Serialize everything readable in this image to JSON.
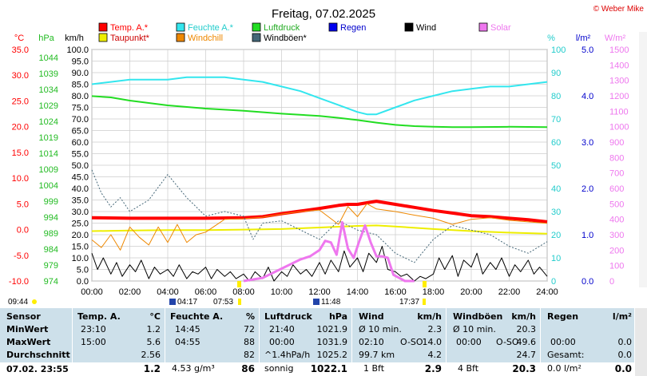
{
  "copyright": "© Weber Mike",
  "chart_data": {
    "type": "line",
    "title": "Freitag, 07.02.2025",
    "legend": [
      {
        "label": "Temp. A.*",
        "color": "#ff0000"
      },
      {
        "label": "Feuchte A.*",
        "color": "#33e6ee"
      },
      {
        "label": "Luftdruck",
        "color": "#22dd22"
      },
      {
        "label": "Regen",
        "color": "#0000ee"
      },
      {
        "label": "Wind",
        "color": "#000000"
      },
      {
        "label": "Solar",
        "color": "#ee77ee"
      },
      {
        "label": "Taupunkt*",
        "color": "#eeee00"
      },
      {
        "label": "Windchill",
        "color": "#ee8800"
      },
      {
        "label": "Windböen*",
        "color": "#446677"
      }
    ],
    "axis_units": {
      "temp": "°C",
      "pressure": "hPa",
      "wind": "km/h",
      "humidity": "%",
      "rain": "l/m²",
      "solar": "W/m²"
    },
    "axis_ticks": {
      "temp": [
        "35.0",
        "30.0",
        "25.0",
        "20.0",
        "15.0",
        "10.0",
        "5.0",
        "0.0",
        "-5.0",
        "-10.0"
      ],
      "pressure": [
        "1044",
        "1039",
        "1034",
        "1029",
        "1024",
        "1019",
        "1014",
        "1009",
        "1004",
        "999",
        "994",
        "989",
        "984",
        "979",
        "974"
      ],
      "wind": [
        "100.0",
        "95.0",
        "90.0",
        "85.0",
        "80.0",
        "75.0",
        "70.0",
        "65.0",
        "60.0",
        "55.0",
        "50.0",
        "45.0",
        "40.0",
        "35.0",
        "30.0",
        "25.0",
        "20.0",
        "15.0",
        "10.0",
        "5.0",
        "0.0"
      ],
      "humidity": [
        "100",
        "90",
        "80",
        "70",
        "60",
        "50",
        "40",
        "30",
        "20",
        "10",
        "0"
      ],
      "rain": [
        "5.0",
        "4.0",
        "3.0",
        "2.0",
        "1.0",
        "0.0"
      ],
      "solar": [
        "1500",
        "1400",
        "1300",
        "1200",
        "1100",
        "1000",
        "900",
        "800",
        "700",
        "600",
        "500",
        "400",
        "300",
        "200",
        "100",
        "0"
      ]
    },
    "x_ticks": [
      "00:00",
      "02:00",
      "04:00",
      "06:00",
      "08:00",
      "10:00",
      "12:00",
      "14:00",
      "16:00",
      "18:00",
      "20:00",
      "22:00",
      "24:00"
    ],
    "x_range": [
      0,
      24
    ],
    "series": [
      {
        "name": "Temp. A.*",
        "axis": "temp",
        "color": "#ff0000",
        "width": 4,
        "x": [
          0,
          2,
          4,
          6,
          8,
          9,
          10,
          11,
          12,
          13,
          13.5,
          14,
          14.5,
          15,
          16,
          17,
          18,
          19,
          20,
          21,
          22,
          23,
          24
        ],
        "y": [
          2.3,
          2.2,
          2.2,
          2.2,
          2.3,
          2.5,
          3.1,
          3.6,
          4.1,
          4.7,
          4.9,
          4.9,
          5.2,
          5.5,
          4.9,
          4.3,
          3.7,
          3.2,
          2.7,
          2.5,
          2.2,
          1.9,
          1.5
        ]
      },
      {
        "name": "Feuchte A.*",
        "axis": "humidity",
        "color": "#33e6ee",
        "width": 2,
        "x": [
          0,
          1,
          2,
          4,
          5,
          6,
          7,
          8,
          9,
          10,
          11,
          12,
          13,
          14,
          14.5,
          15,
          16,
          17,
          18,
          19,
          20,
          21,
          22,
          23,
          24
        ],
        "y": [
          85,
          86,
          87,
          87,
          88,
          88,
          88,
          87,
          86,
          84,
          82,
          79,
          76,
          73,
          72,
          72,
          75,
          78,
          80,
          82,
          83,
          84,
          84,
          85,
          86
        ]
      },
      {
        "name": "Luftdruck",
        "axis": "pressure",
        "color": "#22dd22",
        "width": 2,
        "x": [
          0,
          1,
          2,
          4,
          6,
          8,
          10,
          12,
          13,
          14,
          15,
          16,
          17,
          18,
          19,
          20,
          22,
          24
        ],
        "y": [
          1031.9,
          1031.5,
          1030.5,
          1029.0,
          1028.0,
          1027.3,
          1026.4,
          1025.7,
          1025.1,
          1024.4,
          1023.6,
          1022.9,
          1022.5,
          1022.3,
          1022.2,
          1022.2,
          1022.3,
          1022.2
        ]
      },
      {
        "name": "Taupunkt*",
        "axis": "temp",
        "color": "#eeee00",
        "width": 2,
        "x": [
          0,
          2,
          4,
          6,
          8,
          10,
          12,
          14,
          15,
          16,
          18,
          20,
          22,
          24
        ],
        "y": [
          -0.3,
          -0.2,
          -0.1,
          -0.1,
          0.0,
          0.1,
          0.4,
          0.7,
          0.8,
          0.6,
          0.1,
          -0.3,
          -0.6,
          -0.8
        ]
      },
      {
        "name": "Windchill",
        "axis": "temp",
        "color": "#ee8800",
        "width": 1,
        "x": [
          0,
          0.5,
          1,
          1.5,
          2,
          2.5,
          3,
          3.5,
          4,
          4.5,
          5,
          5.5,
          6,
          7,
          8,
          9,
          10,
          11,
          12,
          13,
          13.5,
          14,
          14.5,
          15,
          16,
          17,
          18,
          19,
          20,
          21,
          22,
          23,
          24
        ],
        "y": [
          -2,
          -3.5,
          -1,
          -4,
          0.5,
          -1.5,
          -3,
          0.5,
          -2.5,
          1,
          -2.5,
          -1,
          -0.5,
          2,
          2.1,
          2.4,
          3,
          3.5,
          3.8,
          1,
          4.5,
          2.5,
          5,
          4,
          3.5,
          2.8,
          2.2,
          1,
          2,
          2.3,
          1.8,
          1.5,
          1.2
        ]
      },
      {
        "name": "Windböen*",
        "axis": "wind",
        "color": "#446677",
        "width": 1,
        "dash": "2,2",
        "x": [
          0,
          0.5,
          1,
          1.5,
          2,
          3,
          4,
          5,
          6,
          7,
          8,
          8.5,
          9,
          10,
          11,
          12,
          13,
          14,
          15,
          16,
          17,
          18,
          19,
          20,
          21,
          22,
          23,
          24
        ],
        "y": [
          48,
          38,
          32,
          36,
          30,
          35,
          46,
          36,
          28,
          30,
          28,
          18,
          25,
          26,
          22,
          18,
          26,
          22,
          20,
          12,
          8,
          18,
          24,
          22,
          20,
          15,
          12,
          17
        ]
      },
      {
        "name": "Wind",
        "axis": "wind",
        "color": "#000000",
        "width": 1,
        "x": [
          0,
          0.3,
          0.6,
          1,
          1.3,
          1.6,
          2,
          2.3,
          2.6,
          3,
          3.3,
          3.6,
          4,
          4.3,
          4.6,
          5,
          5.3,
          5.6,
          6,
          6.3,
          6.6,
          7,
          7.3,
          7.6,
          8,
          8.3,
          8.6,
          9,
          9.3,
          9.6,
          10,
          10.3,
          10.6,
          11,
          11.3,
          11.6,
          12,
          12.3,
          12.6,
          13,
          13.3,
          13.6,
          14,
          14.3,
          14.6,
          15,
          15.3,
          15.6,
          16,
          16.3,
          16.6,
          17,
          17.3,
          17.6,
          18,
          18.3,
          18.6,
          19,
          19.3,
          19.6,
          20,
          20.3,
          20.6,
          21,
          21.3,
          21.6,
          22,
          22.3,
          22.6,
          23,
          23.3,
          23.6,
          24
        ],
        "y": [
          12,
          5,
          10,
          3,
          8,
          2,
          7,
          4,
          9,
          1,
          6,
          3,
          5,
          2,
          7,
          1,
          4,
          3,
          6,
          1,
          5,
          2,
          4,
          1,
          3,
          0,
          4,
          1,
          6,
          0,
          4,
          2,
          7,
          3,
          5,
          2,
          8,
          3,
          9,
          4,
          13,
          6,
          10,
          4,
          12,
          8,
          15,
          5,
          4,
          2,
          3,
          0,
          2,
          1,
          3,
          10,
          5,
          11,
          2,
          9,
          6,
          12,
          3,
          8,
          5,
          10,
          2,
          7,
          4,
          9,
          3,
          6,
          2
        ]
      },
      {
        "name": "Solar",
        "axis": "solar",
        "color": "#ee77ee",
        "width": 3,
        "x": [
          8,
          9,
          9.5,
          10,
          10.5,
          11,
          11.5,
          12,
          12.3,
          12.6,
          12.9,
          13.2,
          13.5,
          13.8,
          14.1,
          14.4,
          14.7,
          15,
          15.3,
          15.6,
          15.9,
          16.2,
          16.5,
          17
        ],
        "y": [
          0,
          20,
          50,
          80,
          110,
          140,
          160,
          200,
          260,
          250,
          170,
          380,
          210,
          150,
          260,
          360,
          250,
          160,
          160,
          150,
          40,
          20,
          0,
          0
        ]
      }
    ],
    "markers": {
      "left_time": "09:44",
      "sunrise": "04:17",
      "time2": "07:53",
      "time3": "11:48",
      "time4": "17:37"
    }
  },
  "stats": {
    "headers": {
      "sensor": "Sensor",
      "temp": "Temp. A.",
      "temp_unit": "°C",
      "hum": "Feuchte A.",
      "hum_unit": "%",
      "press": "Luftdruck",
      "press_unit": "hPa",
      "wind": "Wind",
      "wind_unit": "km/h",
      "gust": "Windböen",
      "gust_unit": "km/h",
      "rain": "Regen",
      "rain_unit": "l/m²"
    },
    "labels": {
      "min": "MinWert",
      "max": "MaxWert",
      "avg": "Durchschnitt",
      "now": "07.02. 23:55"
    },
    "temp": {
      "min_t": "23:10",
      "min": "1.2",
      "max_t": "15:00",
      "max": "5.6",
      "avg": "2.56",
      "now": "1.2"
    },
    "hum": {
      "min_t": "14:45",
      "min": "72",
      "max_t": "04:55",
      "max": "88",
      "avg": "82",
      "abs": "4.53 g/m³",
      "now": "86"
    },
    "press": {
      "min_t": "21:40",
      "min": "1021.9",
      "max_t": "00:00",
      "max": "1031.9",
      "trend": "^1.4hPa/h",
      "avg": "1025.2",
      "weather": "sonnig",
      "now": "1022.1"
    },
    "wind": {
      "l1": "Ø 10 min.",
      "v1": "2.3",
      "l2": "02:10",
      "dir2": "O-SO",
      "v2": "14.0",
      "l3": "99.7 km",
      "v3": "4.2",
      "l4": "1 Bft",
      "now": "2.9"
    },
    "gust": {
      "l1": "Ø 10 min.",
      "v1": "20.3",
      "l2": "00:00",
      "dir2": "O-SO",
      "v2": "49.6",
      "v3": "24.7",
      "l4": "4 Bft",
      "now": "20.3"
    },
    "rain": {
      "l2": "00:00",
      "v2": "0.0",
      "l3": "Gesamt:",
      "v3": "0.0",
      "l4": "0.0 l/m²",
      "now": "0.0"
    }
  }
}
